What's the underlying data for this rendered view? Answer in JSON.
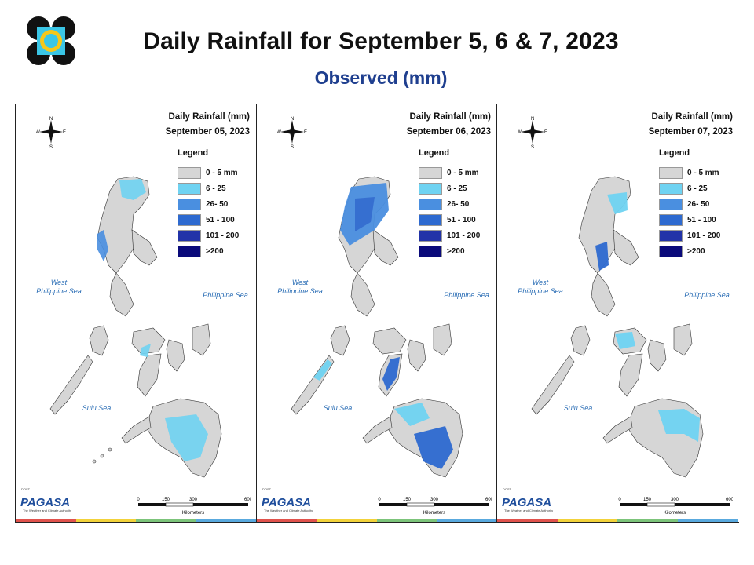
{
  "title": "Daily Rainfall for September 5, 6 & 7, 2023",
  "subtitle": "Observed (mm)",
  "panels": [
    {
      "heading": "Daily Rainfall (mm)",
      "date": "September 05, 2023"
    },
    {
      "heading": "Daily Rainfall (mm)",
      "date": "September 06, 2023"
    },
    {
      "heading": "Daily Rainfall (mm)",
      "date": "September 07, 2023"
    }
  ],
  "legend": {
    "title": "Legend",
    "items": [
      {
        "label": "0 - 5 mm",
        "color": "#d6d6d6"
      },
      {
        "label": "6 - 25",
        "color": "#6fd3f2"
      },
      {
        "label": "26- 50",
        "color": "#4a8fe0"
      },
      {
        "label": "51 - 100",
        "color": "#2e6ad0"
      },
      {
        "label": "101 - 200",
        "color": "#2233a8"
      },
      {
        "label": ">200",
        "color": "#0a0a7a"
      }
    ]
  },
  "seas": {
    "west": "West\nPhilippine Sea",
    "east": "Philippine Sea",
    "south": "Sulu Sea"
  },
  "compass": {
    "n": "N",
    "s": "S",
    "e": "E",
    "w": "W"
  },
  "scale": {
    "ticks": [
      "0",
      "150",
      "300",
      "600"
    ],
    "unit": "Kilometers"
  },
  "branding": {
    "agency": "PAGASA",
    "dost": "DOST",
    "tagline": "The Weather and Climate Authority"
  },
  "colors": {
    "stripe": [
      "#e0524c",
      "#f2d23a",
      "#7cc47a",
      "#59a9de"
    ],
    "title_blue": "#1f3f8f"
  }
}
